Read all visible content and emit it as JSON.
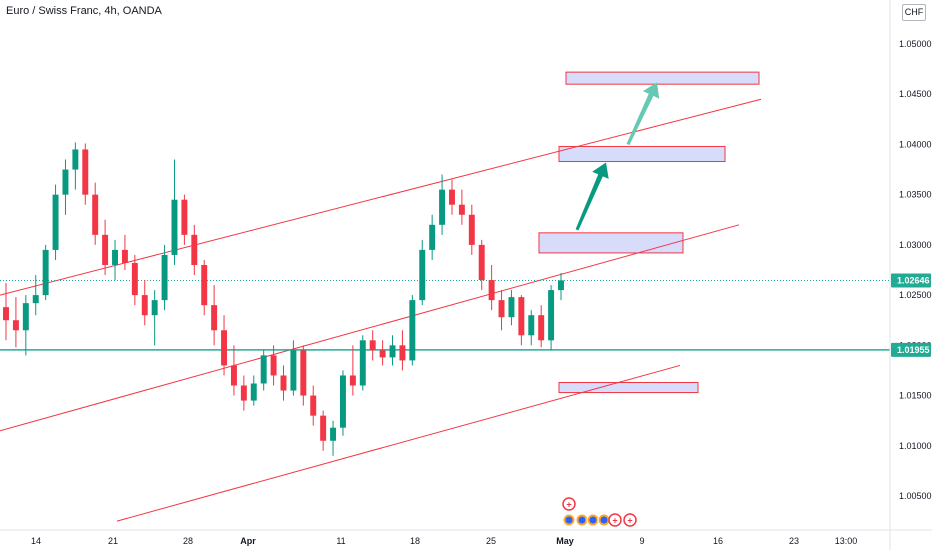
{
  "header": {
    "title": "Euro / Swiss Franc, 4h, OANDA",
    "currency": "CHF"
  },
  "chart_data": {
    "type": "candlestick",
    "symbol": "EURCHF",
    "timeframe": "4h",
    "broker": "OANDA",
    "y_ticks": [
      "1.05000",
      "1.04500",
      "1.04000",
      "1.03500",
      "1.03000",
      "1.02500",
      "1.02000",
      "1.01500",
      "1.01000",
      "1.00500"
    ],
    "y_tick_values": [
      1.05,
      1.045,
      1.04,
      1.035,
      1.03,
      1.025,
      1.02,
      1.015,
      1.01,
      1.005
    ],
    "ylim": [
      1.0025,
      1.0525
    ],
    "x_ticks": [
      "14",
      "21",
      "28",
      "Apr",
      "11",
      "18",
      "25",
      "May",
      "9",
      "16",
      "23",
      "13:00"
    ],
    "price_tags": [
      {
        "label": "1.02646",
        "value": 1.02646,
        "color": "#22ab94"
      },
      {
        "label": "1.01955",
        "value": 1.01955,
        "color": "#22ab94"
      }
    ],
    "candles_approx": [
      {
        "o": 1.0238,
        "h": 1.0262,
        "l": 1.0205,
        "c": 1.0225
      },
      {
        "o": 1.0225,
        "h": 1.0248,
        "l": 1.0198,
        "c": 1.0215
      },
      {
        "o": 1.0215,
        "h": 1.025,
        "l": 1.019,
        "c": 1.0242
      },
      {
        "o": 1.0242,
        "h": 1.027,
        "l": 1.023,
        "c": 1.025
      },
      {
        "o": 1.025,
        "h": 1.03,
        "l": 1.0245,
        "c": 1.0295
      },
      {
        "o": 1.0295,
        "h": 1.036,
        "l": 1.0285,
        "c": 1.035
      },
      {
        "o": 1.035,
        "h": 1.0385,
        "l": 1.033,
        "c": 1.0375
      },
      {
        "o": 1.0375,
        "h": 1.0402,
        "l": 1.0355,
        "c": 1.0395
      },
      {
        "o": 1.0395,
        "h": 1.0401,
        "l": 1.034,
        "c": 1.035
      },
      {
        "o": 1.035,
        "h": 1.0362,
        "l": 1.03,
        "c": 1.031
      },
      {
        "o": 1.031,
        "h": 1.0325,
        "l": 1.027,
        "c": 1.028
      },
      {
        "o": 1.028,
        "h": 1.0305,
        "l": 1.0265,
        "c": 1.0295
      },
      {
        "o": 1.0295,
        "h": 1.031,
        "l": 1.0275,
        "c": 1.0282
      },
      {
        "o": 1.0282,
        "h": 1.029,
        "l": 1.024,
        "c": 1.025
      },
      {
        "o": 1.025,
        "h": 1.0265,
        "l": 1.022,
        "c": 1.023
      },
      {
        "o": 1.023,
        "h": 1.0255,
        "l": 1.02,
        "c": 1.0245
      },
      {
        "o": 1.0245,
        "h": 1.03,
        "l": 1.0235,
        "c": 1.029
      },
      {
        "o": 1.029,
        "h": 1.0385,
        "l": 1.028,
        "c": 1.0345
      },
      {
        "o": 1.0345,
        "h": 1.035,
        "l": 1.03,
        "c": 1.031
      },
      {
        "o": 1.031,
        "h": 1.032,
        "l": 1.027,
        "c": 1.028
      },
      {
        "o": 1.028,
        "h": 1.0285,
        "l": 1.023,
        "c": 1.024
      },
      {
        "o": 1.024,
        "h": 1.026,
        "l": 1.02,
        "c": 1.0215
      },
      {
        "o": 1.0215,
        "h": 1.023,
        "l": 1.017,
        "c": 1.018
      },
      {
        "o": 1.018,
        "h": 1.02,
        "l": 1.015,
        "c": 1.016
      },
      {
        "o": 1.016,
        "h": 1.017,
        "l": 1.0135,
        "c": 1.0145
      },
      {
        "o": 1.0145,
        "h": 1.017,
        "l": 1.014,
        "c": 1.0162
      },
      {
        "o": 1.0162,
        "h": 1.0195,
        "l": 1.0155,
        "c": 1.019
      },
      {
        "o": 1.019,
        "h": 1.02,
        "l": 1.016,
        "c": 1.017
      },
      {
        "o": 1.017,
        "h": 1.018,
        "l": 1.0145,
        "c": 1.0155
      },
      {
        "o": 1.0155,
        "h": 1.0205,
        "l": 1.015,
        "c": 1.0195
      },
      {
        "o": 1.0195,
        "h": 1.02,
        "l": 1.014,
        "c": 1.015
      },
      {
        "o": 1.015,
        "h": 1.016,
        "l": 1.012,
        "c": 1.013
      },
      {
        "o": 1.013,
        "h": 1.0135,
        "l": 1.0095,
        "c": 1.0105
      },
      {
        "o": 1.0105,
        "h": 1.0125,
        "l": 1.009,
        "c": 1.0118
      },
      {
        "o": 1.0118,
        "h": 1.0175,
        "l": 1.011,
        "c": 1.017
      },
      {
        "o": 1.017,
        "h": 1.02,
        "l": 1.015,
        "c": 1.016
      },
      {
        "o": 1.016,
        "h": 1.021,
        "l": 1.0155,
        "c": 1.0205
      },
      {
        "o": 1.0205,
        "h": 1.0215,
        "l": 1.0185,
        "c": 1.0195
      },
      {
        "o": 1.0195,
        "h": 1.0205,
        "l": 1.018,
        "c": 1.0188
      },
      {
        "o": 1.0188,
        "h": 1.021,
        "l": 1.018,
        "c": 1.02
      },
      {
        "o": 1.02,
        "h": 1.0215,
        "l": 1.0175,
        "c": 1.0185
      },
      {
        "o": 1.0185,
        "h": 1.025,
        "l": 1.018,
        "c": 1.0245
      },
      {
        "o": 1.0245,
        "h": 1.0305,
        "l": 1.024,
        "c": 1.0295
      },
      {
        "o": 1.0295,
        "h": 1.033,
        "l": 1.0285,
        "c": 1.032
      },
      {
        "o": 1.032,
        "h": 1.037,
        "l": 1.031,
        "c": 1.0355
      },
      {
        "o": 1.0355,
        "h": 1.0365,
        "l": 1.033,
        "c": 1.034
      },
      {
        "o": 1.034,
        "h": 1.0355,
        "l": 1.032,
        "c": 1.033
      },
      {
        "o": 1.033,
        "h": 1.034,
        "l": 1.029,
        "c": 1.03
      },
      {
        "o": 1.03,
        "h": 1.0305,
        "l": 1.0255,
        "c": 1.0265
      },
      {
        "o": 1.0265,
        "h": 1.028,
        "l": 1.0235,
        "c": 1.0245
      },
      {
        "o": 1.0245,
        "h": 1.0255,
        "l": 1.0215,
        "c": 1.0228
      },
      {
        "o": 1.0228,
        "h": 1.0255,
        "l": 1.022,
        "c": 1.0248
      },
      {
        "o": 1.0248,
        "h": 1.025,
        "l": 1.02,
        "c": 1.021
      },
      {
        "o": 1.021,
        "h": 1.0235,
        "l": 1.02,
        "c": 1.023
      },
      {
        "o": 1.023,
        "h": 1.024,
        "l": 1.0198,
        "c": 1.0205
      },
      {
        "o": 1.0205,
        "h": 1.026,
        "l": 1.0195,
        "c": 1.0255
      },
      {
        "o": 1.0255,
        "h": 1.0272,
        "l": 1.0245,
        "c": 1.02646
      }
    ],
    "trend_lines": [
      {
        "name": "upper-channel-line",
        "color": "#f23645",
        "from": [
          0,
          1.025
        ],
        "to": [
          761,
          1.0445
        ]
      },
      {
        "name": "middle-channel-line",
        "color": "#f23645",
        "from": [
          0,
          1.0115
        ],
        "to": [
          739,
          1.032
        ]
      },
      {
        "name": "lower-channel-line",
        "color": "#f23645",
        "from": [
          117,
          1.0025
        ],
        "to": [
          680,
          1.018
        ]
      }
    ],
    "horizontal_lines": [
      {
        "name": "support-line",
        "value": 1.01955,
        "color": "#22ab94",
        "style": "solid"
      },
      {
        "name": "last-price-line",
        "value": 1.02646,
        "color": "#22ab94",
        "style": "dotted"
      }
    ],
    "zones": [
      {
        "name": "target-zone-3",
        "top": 1.0472,
        "bottom": 1.046
      },
      {
        "name": "target-zone-2",
        "top": 1.0398,
        "bottom": 1.0383
      },
      {
        "name": "target-zone-1",
        "top": 1.0312,
        "bottom": 1.0292
      },
      {
        "name": "lower-zone",
        "top": 1.0163,
        "bottom": 1.0153
      }
    ],
    "arrows": [
      {
        "name": "arrow-up-1",
        "color": "#089981",
        "from": [
          577,
          1.0315
        ],
        "to": [
          606,
          1.0382
        ]
      },
      {
        "name": "arrow-up-2",
        "color": "#66c9b4",
        "from": [
          628,
          1.04
        ],
        "to": [
          657,
          1.0462
        ]
      }
    ],
    "grid": false,
    "legend": "none"
  },
  "events": {
    "icons": [
      "flag-icon",
      "calendar-icon",
      "calendar-icon",
      "calendar-icon",
      "calendar-icon",
      "flag-icon",
      "flag-icon"
    ]
  },
  "colors": {
    "up": "#089981",
    "down": "#f23645",
    "zone_fill": "#d6dcfa",
    "zone_border": "#f23645"
  }
}
